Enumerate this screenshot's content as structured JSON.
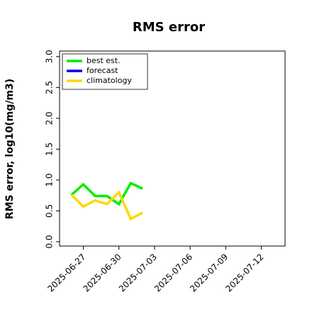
{
  "chart_data": {
    "type": "line",
    "title": "RMS error",
    "ylabel": "RMS error, log10(mg/m3)",
    "x": [
      "2025-06-26",
      "2025-06-27",
      "2025-06-28",
      "2025-06-29",
      "2025-06-30",
      "2025-07-01",
      "2025-07-02"
    ],
    "series": [
      {
        "name": "best est.",
        "color": "#00ee00",
        "values": [
          0.76,
          0.93,
          0.74,
          0.74,
          0.61,
          0.95,
          0.86
        ]
      },
      {
        "name": "forecast",
        "color": "#0000ee",
        "values": [
          null,
          null,
          null,
          null,
          null,
          null,
          null
        ]
      },
      {
        "name": "climatology",
        "color": "#ffd700",
        "values": [
          0.76,
          0.57,
          0.67,
          0.61,
          0.8,
          0.37,
          0.47
        ]
      }
    ],
    "xlim": [
      "2025-06-25",
      "2025-07-14"
    ],
    "xticks": [
      "2025-06-27",
      "2025-06-30",
      "2025-07-03",
      "2025-07-06",
      "2025-07-09",
      "2025-07-12"
    ],
    "xtick_colors": [
      "#000000",
      "#000000",
      "#228b22",
      "#000000",
      "#000000",
      "#000000"
    ],
    "ylim": [
      -0.07,
      3.09
    ],
    "yticks": [
      {
        "value": 0,
        "label": "0.0"
      },
      0.5,
      {
        "value": 1,
        "label": "1.0"
      },
      1.5,
      {
        "value": 2,
        "label": "2.0"
      },
      2.5,
      {
        "value": 3,
        "label": "3.0"
      }
    ],
    "legend": "upper left",
    "grid": false
  }
}
